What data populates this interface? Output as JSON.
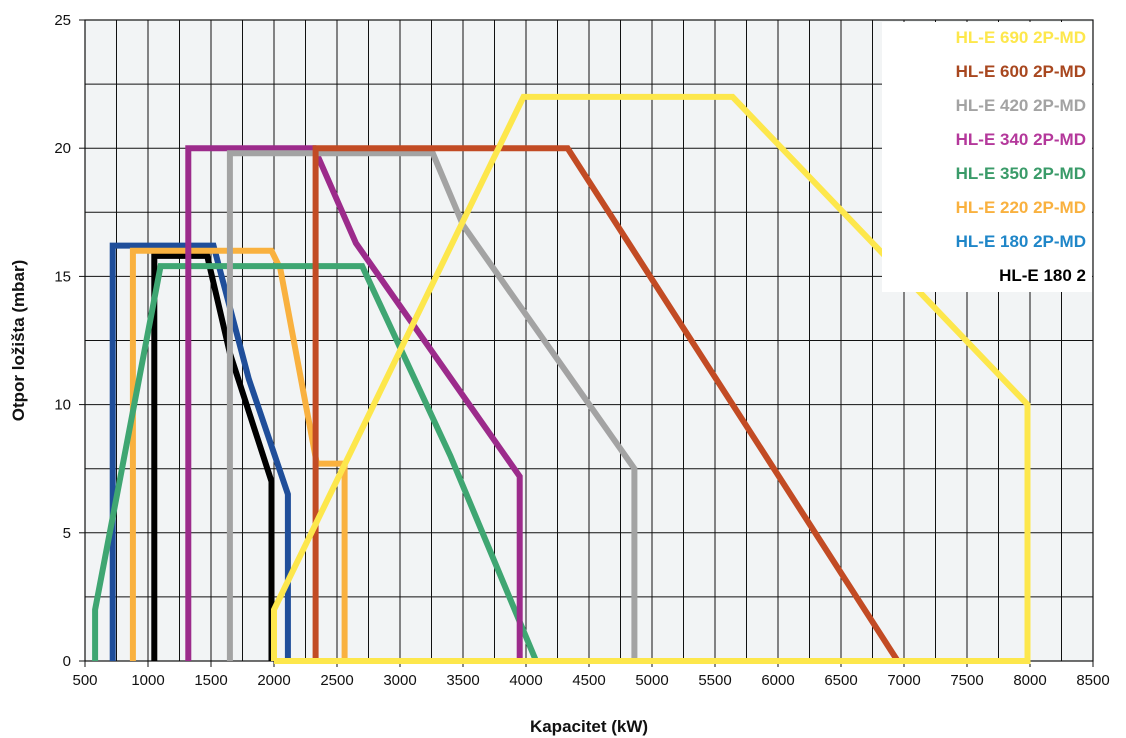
{
  "chart_data": {
    "type": "line",
    "title": "",
    "xlabel": "Kapacitet (kW)",
    "ylabel": "Otpor ložišta (mbar)",
    "xlim": [
      500,
      8500
    ],
    "ylim": [
      0,
      25
    ],
    "x_ticks": [
      "500",
      "1000",
      "1500",
      "2000",
      "2500",
      "3000",
      "3500",
      "4000",
      "4500",
      "5000",
      "5500",
      "6000",
      "6500",
      "7000",
      "7500",
      "8000",
      "8500"
    ],
    "y_ticks": [
      "0",
      "5",
      "10",
      "15",
      "20",
      "25"
    ],
    "grid": true,
    "legend_position": "top-right",
    "series": [
      {
        "name": "HL-E 180 2",
        "color": "#000000",
        "points": [
          [
            1050,
            0
          ],
          [
            1050,
            15.8
          ],
          [
            1470,
            15.8
          ],
          [
            1650,
            12
          ],
          [
            1980,
            7
          ],
          [
            1980,
            0
          ]
        ]
      },
      {
        "name": "HL-E 180 2P-MD",
        "color": "#1f4e9a",
        "points": [
          [
            720,
            0
          ],
          [
            720,
            16.2
          ],
          [
            1520,
            16.2
          ],
          [
            1800,
            11
          ],
          [
            2110,
            6.5
          ],
          [
            2110,
            0
          ]
        ]
      },
      {
        "name": "HL-E 220 2P-MD",
        "color": "#f9b13f",
        "points": [
          [
            880,
            0
          ],
          [
            880,
            16
          ],
          [
            1980,
            16
          ],
          [
            2050,
            15.3
          ],
          [
            2340,
            7.7
          ],
          [
            2560,
            7.7
          ],
          [
            2560,
            0
          ]
        ]
      },
      {
        "name": "HL-E 350 2P-MD",
        "color": "#3fa672",
        "points": [
          [
            580,
            0
          ],
          [
            580,
            2
          ],
          [
            1100,
            15.4
          ],
          [
            2700,
            15.4
          ],
          [
            3400,
            8
          ],
          [
            4080,
            0
          ]
        ]
      },
      {
        "name": "HL-E 340 2P-MD",
        "color": "#9c2b8b",
        "points": [
          [
            1320,
            0
          ],
          [
            1320,
            20
          ],
          [
            2320,
            20
          ],
          [
            2650,
            16.3
          ],
          [
            3950,
            7.2
          ],
          [
            3950,
            0
          ]
        ]
      },
      {
        "name": "HL-E 420 2P-MD",
        "color": "#a3a3a3",
        "points": [
          [
            1650,
            0
          ],
          [
            1650,
            19.8
          ],
          [
            3260,
            19.8
          ],
          [
            3500,
            17
          ],
          [
            4860,
            7.5
          ],
          [
            4860,
            0
          ]
        ]
      },
      {
        "name": "HL-E 600 2P-MD",
        "color": "#c24b24",
        "points": [
          [
            2330,
            0
          ],
          [
            2330,
            20
          ],
          [
            4330,
            20
          ],
          [
            6950,
            0
          ]
        ]
      },
      {
        "name": "HL-E 690 2P-MD",
        "color": "#fde74c",
        "points": [
          [
            2000,
            0
          ],
          [
            2000,
            2
          ],
          [
            3980,
            22
          ],
          [
            5640,
            22
          ],
          [
            7980,
            10
          ],
          [
            7980,
            0
          ],
          [
            2000,
            0
          ]
        ]
      }
    ],
    "legend": [
      {
        "label": "HL-E 690 2P-MD",
        "color": "#fde74c"
      },
      {
        "label": "HL-E 600 2P-MD",
        "color": "#a8471f"
      },
      {
        "label": "HL-E 420 2P-MD",
        "color": "#a3a3a3"
      },
      {
        "label": "HL-E 340 2P-MD",
        "color": "#b4389b"
      },
      {
        "label": "HL-E 350 2P-MD",
        "color": "#3a9b69"
      },
      {
        "label": "HL-E 220 2P-MD",
        "color": "#f9b13f"
      },
      {
        "label": "HL-E 180 2P-MD",
        "color": "#1f86c8"
      },
      {
        "label": "HL-E 180 2",
        "color": "#000000"
      }
    ]
  }
}
